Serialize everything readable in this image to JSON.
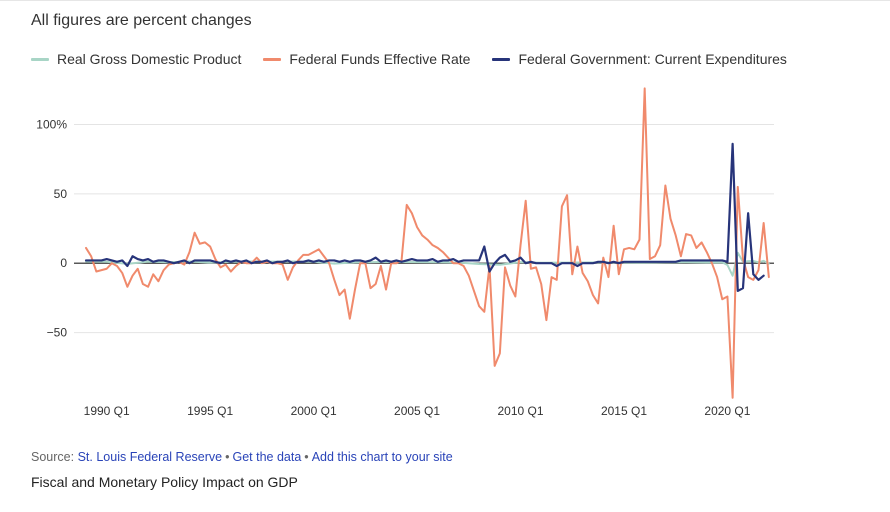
{
  "subtitle": "All figures are percent changes",
  "footer": {
    "source_label": "Source:",
    "source_link": "St. Louis Federal Reserve",
    "sep1": "•",
    "get_data": "Get the data",
    "sep2": "•",
    "add_chart": "Add this chart to your site",
    "chart_title": "Fiscal and Monetary Policy Impact on GDP"
  },
  "chart_data": {
    "type": "line",
    "title": "Fiscal and Monetary Policy Impact on GDP",
    "subtitle": "All figures are percent changes",
    "xlabel": "",
    "ylabel": "",
    "legend_position": "top-left",
    "grid": false,
    "x_tick_labels": [
      "1990 Q1",
      "1995 Q1",
      "2000 Q1",
      "2005 Q1",
      "2010 Q1",
      "2015 Q1",
      "2020 Q1"
    ],
    "y_ticks": [
      100,
      50,
      0,
      -50
    ],
    "y_tick_labels": [
      "100%",
      "50",
      "0",
      "−50"
    ],
    "ylim": [
      -95,
      127
    ],
    "xlim": [
      1989.0,
      2022.25
    ],
    "series": [
      {
        "name": "Real Gross Domestic Product",
        "color": "#a8d5c6",
        "points": [
          [
            1989.0,
            1.2
          ],
          [
            1990.0,
            1.0
          ],
          [
            1991.0,
            -0.5
          ],
          [
            1992.0,
            1.1
          ],
          [
            1993.0,
            0.7
          ],
          [
            1994.0,
            1.2
          ],
          [
            1995.0,
            0.4
          ],
          [
            1996.0,
            1.0
          ],
          [
            1997.0,
            1.2
          ],
          [
            1998.0,
            1.1
          ],
          [
            1999.0,
            1.2
          ],
          [
            2000.0,
            1.0
          ],
          [
            2001.0,
            -0.3
          ],
          [
            2002.0,
            0.6
          ],
          [
            2003.0,
            0.8
          ],
          [
            2004.0,
            0.9
          ],
          [
            2005.0,
            0.8
          ],
          [
            2006.0,
            0.7
          ],
          [
            2007.0,
            0.5
          ],
          [
            2008.0,
            -0.6
          ],
          [
            2009.0,
            -1.1
          ],
          [
            2010.0,
            0.8
          ],
          [
            2011.0,
            0.3
          ],
          [
            2012.0,
            0.4
          ],
          [
            2013.0,
            0.5
          ],
          [
            2014.0,
            0.6
          ],
          [
            2015.0,
            0.5
          ],
          [
            2016.0,
            0.4
          ],
          [
            2017.0,
            0.6
          ],
          [
            2018.0,
            0.7
          ],
          [
            2019.0,
            0.5
          ],
          [
            2019.75,
            0.6
          ],
          [
            2020.0,
            -1.3
          ],
          [
            2020.25,
            -9.0
          ],
          [
            2020.5,
            7.5
          ],
          [
            2020.75,
            1.0
          ],
          [
            2021.0,
            1.5
          ],
          [
            2021.25,
            1.6
          ],
          [
            2021.5,
            0.6
          ],
          [
            2021.75,
            1.7
          ],
          [
            2022.0,
            -0.4
          ]
        ]
      },
      {
        "name": "Federal Funds Effective Rate",
        "color": "#f08a6c",
        "points": [
          [
            1989.0,
            11
          ],
          [
            1989.25,
            5
          ],
          [
            1989.5,
            -6
          ],
          [
            1989.75,
            -5
          ],
          [
            1990.0,
            -4
          ],
          [
            1990.25,
            0
          ],
          [
            1990.5,
            -2
          ],
          [
            1990.75,
            -7
          ],
          [
            1991.0,
            -17
          ],
          [
            1991.25,
            -9
          ],
          [
            1991.5,
            -4
          ],
          [
            1991.75,
            -15
          ],
          [
            1992.0,
            -17
          ],
          [
            1992.25,
            -8
          ],
          [
            1992.5,
            -13
          ],
          [
            1992.75,
            -5
          ],
          [
            1993.0,
            -1
          ],
          [
            1993.25,
            0
          ],
          [
            1993.5,
            1
          ],
          [
            1993.75,
            -1
          ],
          [
            1994.0,
            8
          ],
          [
            1994.25,
            22
          ],
          [
            1994.5,
            14
          ],
          [
            1994.75,
            15
          ],
          [
            1995.0,
            12
          ],
          [
            1995.25,
            3
          ],
          [
            1995.5,
            -3
          ],
          [
            1995.75,
            -1
          ],
          [
            1996.0,
            -6
          ],
          [
            1996.25,
            -2
          ],
          [
            1996.5,
            1
          ],
          [
            1996.75,
            0
          ],
          [
            1997.0,
            0
          ],
          [
            1997.25,
            4
          ],
          [
            1997.5,
            0
          ],
          [
            1997.75,
            1
          ],
          [
            1998.0,
            0
          ],
          [
            1998.25,
            0
          ],
          [
            1998.5,
            -1
          ],
          [
            1998.75,
            -12
          ],
          [
            1999.0,
            -3
          ],
          [
            1999.25,
            2
          ],
          [
            1999.5,
            6
          ],
          [
            1999.75,
            6
          ],
          [
            2000.0,
            8
          ],
          [
            2000.25,
            10
          ],
          [
            2000.5,
            5
          ],
          [
            2000.75,
            0
          ],
          [
            2001.0,
            -12
          ],
          [
            2001.25,
            -23
          ],
          [
            2001.5,
            -19
          ],
          [
            2001.75,
            -40
          ],
          [
            2002.0,
            -19
          ],
          [
            2002.25,
            0
          ],
          [
            2002.5,
            0
          ],
          [
            2002.75,
            -18
          ],
          [
            2003.0,
            -15
          ],
          [
            2003.25,
            -2
          ],
          [
            2003.5,
            -19
          ],
          [
            2003.75,
            0
          ],
          [
            2004.0,
            0
          ],
          [
            2004.25,
            2
          ],
          [
            2004.5,
            42
          ],
          [
            2004.75,
            36
          ],
          [
            2005.0,
            26
          ],
          [
            2005.25,
            20
          ],
          [
            2005.5,
            17
          ],
          [
            2005.75,
            13
          ],
          [
            2006.0,
            11
          ],
          [
            2006.25,
            8
          ],
          [
            2006.5,
            4
          ],
          [
            2006.75,
            0
          ],
          [
            2007.0,
            0
          ],
          [
            2007.25,
            -2
          ],
          [
            2007.5,
            -9
          ],
          [
            2007.75,
            -20
          ],
          [
            2008.0,
            -31
          ],
          [
            2008.25,
            -35
          ],
          [
            2008.5,
            -2
          ],
          [
            2008.75,
            -74
          ],
          [
            2009.0,
            -65
          ],
          [
            2009.25,
            -3
          ],
          [
            2009.5,
            -16
          ],
          [
            2009.75,
            -24
          ],
          [
            2010.0,
            13
          ],
          [
            2010.25,
            45
          ],
          [
            2010.5,
            -4
          ],
          [
            2010.75,
            -3
          ],
          [
            2011.0,
            -15
          ],
          [
            2011.25,
            -41
          ],
          [
            2011.5,
            -10
          ],
          [
            2011.75,
            -12
          ],
          [
            2012.0,
            41
          ],
          [
            2012.25,
            49
          ],
          [
            2012.5,
            -8
          ],
          [
            2012.75,
            12
          ],
          [
            2013.0,
            -7
          ],
          [
            2013.25,
            -13
          ],
          [
            2013.5,
            -23
          ],
          [
            2013.75,
            -29
          ],
          [
            2014.0,
            4
          ],
          [
            2014.25,
            -10
          ],
          [
            2014.5,
            27
          ],
          [
            2014.75,
            -8
          ],
          [
            2015.0,
            10
          ],
          [
            2015.25,
            11
          ],
          [
            2015.5,
            10
          ],
          [
            2015.75,
            17
          ],
          [
            2016.0,
            126
          ],
          [
            2016.25,
            3
          ],
          [
            2016.5,
            5
          ],
          [
            2016.75,
            13
          ],
          [
            2017.0,
            56
          ],
          [
            2017.25,
            32
          ],
          [
            2017.5,
            20
          ],
          [
            2017.75,
            5
          ],
          [
            2018.0,
            21
          ],
          [
            2018.25,
            20
          ],
          [
            2018.5,
            11
          ],
          [
            2018.75,
            15
          ],
          [
            2019.0,
            8
          ],
          [
            2019.25,
            0
          ],
          [
            2019.5,
            -10
          ],
          [
            2019.75,
            -26
          ],
          [
            2020.0,
            -24
          ],
          [
            2020.25,
            -97
          ],
          [
            2020.5,
            55
          ],
          [
            2020.75,
            3
          ],
          [
            2021.0,
            -10
          ],
          [
            2021.25,
            -12
          ],
          [
            2021.5,
            -5
          ],
          [
            2021.75,
            29
          ],
          [
            2022.0,
            -10
          ]
        ]
      },
      {
        "name": "Federal Government: Current Expenditures",
        "color": "#27347a",
        "points": [
          [
            1989.0,
            2
          ],
          [
            1989.5,
            2
          ],
          [
            1989.75,
            2
          ],
          [
            1990.0,
            3
          ],
          [
            1990.25,
            2
          ],
          [
            1990.5,
            1
          ],
          [
            1990.75,
            2
          ],
          [
            1991.0,
            -2
          ],
          [
            1991.25,
            5
          ],
          [
            1991.5,
            3
          ],
          [
            1991.75,
            2
          ],
          [
            1992.0,
            3
          ],
          [
            1992.25,
            1
          ],
          [
            1992.5,
            2
          ],
          [
            1992.75,
            2
          ],
          [
            1993.0,
            1
          ],
          [
            1993.25,
            0
          ],
          [
            1993.5,
            1
          ],
          [
            1993.75,
            2
          ],
          [
            1994.0,
            0
          ],
          [
            1994.25,
            2
          ],
          [
            1994.5,
            2
          ],
          [
            1994.75,
            2
          ],
          [
            1995.0,
            2
          ],
          [
            1995.25,
            1
          ],
          [
            1995.5,
            0
          ],
          [
            1995.75,
            2
          ],
          [
            1996.0,
            1
          ],
          [
            1996.25,
            2
          ],
          [
            1996.5,
            1
          ],
          [
            1996.75,
            2
          ],
          [
            1997.0,
            0
          ],
          [
            1997.25,
            1
          ],
          [
            1997.5,
            1
          ],
          [
            1997.75,
            2
          ],
          [
            1998.0,
            0
          ],
          [
            1998.25,
            1
          ],
          [
            1998.5,
            1
          ],
          [
            1998.75,
            2
          ],
          [
            1999.0,
            0
          ],
          [
            1999.25,
            1
          ],
          [
            1999.5,
            1
          ],
          [
            1999.75,
            2
          ],
          [
            2000.0,
            1
          ],
          [
            2000.25,
            2
          ],
          [
            2000.5,
            1
          ],
          [
            2000.75,
            2
          ],
          [
            2001.0,
            2
          ],
          [
            2001.25,
            1
          ],
          [
            2001.5,
            2
          ],
          [
            2001.75,
            1
          ],
          [
            2002.0,
            2
          ],
          [
            2002.25,
            2
          ],
          [
            2002.5,
            1
          ],
          [
            2002.75,
            2
          ],
          [
            2003.0,
            4
          ],
          [
            2003.25,
            1
          ],
          [
            2003.5,
            2
          ],
          [
            2003.75,
            1
          ],
          [
            2004.0,
            2
          ],
          [
            2004.25,
            1
          ],
          [
            2004.5,
            2
          ],
          [
            2004.75,
            3
          ],
          [
            2005.0,
            2
          ],
          [
            2005.25,
            2
          ],
          [
            2005.5,
            2
          ],
          [
            2005.75,
            3
          ],
          [
            2006.0,
            1
          ],
          [
            2006.25,
            2
          ],
          [
            2006.5,
            2
          ],
          [
            2006.75,
            3
          ],
          [
            2007.0,
            1
          ],
          [
            2007.25,
            2
          ],
          [
            2007.5,
            2
          ],
          [
            2007.75,
            2
          ],
          [
            2008.0,
            2
          ],
          [
            2008.25,
            12
          ],
          [
            2008.5,
            -6
          ],
          [
            2008.75,
            0
          ],
          [
            2009.0,
            4
          ],
          [
            2009.25,
            6
          ],
          [
            2009.5,
            1
          ],
          [
            2009.75,
            2
          ],
          [
            2010.0,
            4
          ],
          [
            2010.25,
            0
          ],
          [
            2010.5,
            1
          ],
          [
            2010.75,
            0
          ],
          [
            2011.0,
            0
          ],
          [
            2011.25,
            0
          ],
          [
            2011.5,
            0
          ],
          [
            2011.75,
            -2
          ],
          [
            2012.0,
            0
          ],
          [
            2012.25,
            0
          ],
          [
            2012.5,
            0
          ],
          [
            2012.75,
            -2
          ],
          [
            2013.0,
            0
          ],
          [
            2013.25,
            0
          ],
          [
            2013.5,
            0
          ],
          [
            2013.75,
            1
          ],
          [
            2014.0,
            1
          ],
          [
            2014.25,
            0
          ],
          [
            2014.5,
            1
          ],
          [
            2014.75,
            0
          ],
          [
            2015.0,
            1
          ],
          [
            2015.25,
            1
          ],
          [
            2015.5,
            1
          ],
          [
            2015.75,
            1
          ],
          [
            2016.0,
            1
          ],
          [
            2016.25,
            1
          ],
          [
            2016.5,
            1
          ],
          [
            2016.75,
            1
          ],
          [
            2017.0,
            1
          ],
          [
            2017.25,
            1
          ],
          [
            2017.5,
            1
          ],
          [
            2017.75,
            2
          ],
          [
            2018.0,
            2
          ],
          [
            2018.25,
            2
          ],
          [
            2018.5,
            2
          ],
          [
            2018.75,
            2
          ],
          [
            2019.0,
            2
          ],
          [
            2019.25,
            2
          ],
          [
            2019.5,
            2
          ],
          [
            2019.75,
            2
          ],
          [
            2020.0,
            1
          ],
          [
            2020.25,
            86
          ],
          [
            2020.5,
            -20
          ],
          [
            2020.75,
            -18
          ],
          [
            2021.0,
            36
          ],
          [
            2021.25,
            -8
          ],
          [
            2021.5,
            -12
          ],
          [
            2021.75,
            -9
          ]
        ]
      }
    ]
  }
}
